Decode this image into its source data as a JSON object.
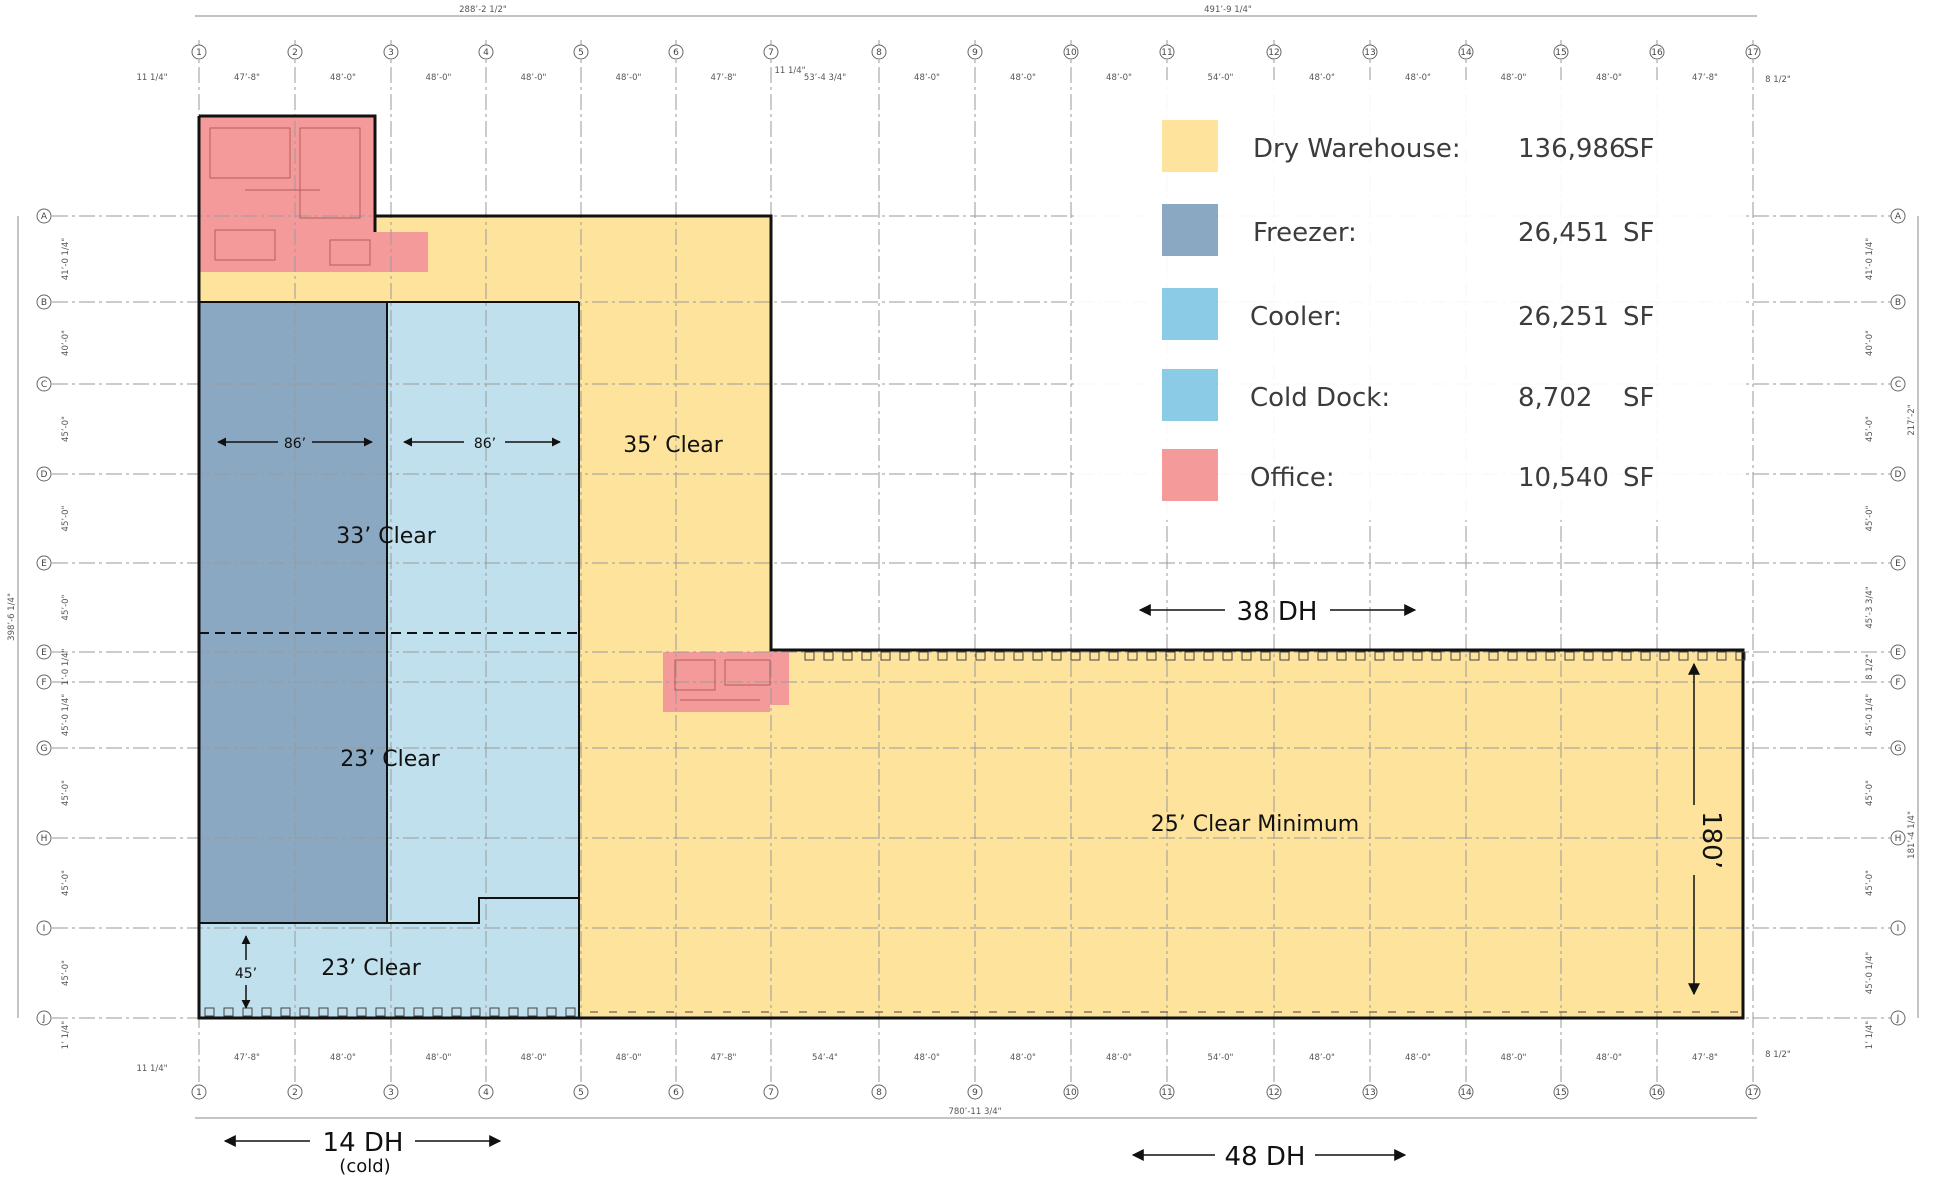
{
  "colors": {
    "dry_warehouse": "#fde39b",
    "freezer": "#8ba8c3",
    "cooler": "#bfe0ec",
    "cold_dock": "#bfe0ec",
    "office": "#f59a9a",
    "legend_cooler": "#8ccbe6",
    "legend_cold_dock": "#8ccbe6"
  },
  "legend": [
    {
      "key": "dry_warehouse",
      "label": "Dry Warehouse:",
      "value": "136,986",
      "unit": "SF"
    },
    {
      "key": "freezer",
      "label": "Freezer:",
      "value": "26,451",
      "unit": "SF"
    },
    {
      "key": "cooler",
      "label": "Cooler:",
      "value": "26,251",
      "unit": "SF"
    },
    {
      "key": "cold_dock",
      "label": "Cold Dock:",
      "value": "8,702",
      "unit": "SF"
    },
    {
      "key": "office",
      "label": "Office:",
      "value": "10,540",
      "unit": "SF"
    }
  ],
  "zone_labels": {
    "dry_clear": "35’ Clear",
    "upper_cold_clear": "33’ Clear",
    "lower_cold_clear": "23’ Clear",
    "dock_clear": "23’ Clear",
    "main_clear": "25’ Clear Minimum"
  },
  "dimensions": {
    "freezer_width": "86’",
    "cooler_width": "86’",
    "dock_depth": "45’",
    "wing_depth": "180’"
  },
  "door_labels": {
    "north": "38 DH",
    "south": "48 DH",
    "cold": "14 DH",
    "cold_note": "(cold)"
  },
  "top_overall_dims": [
    "288’-2 1/2\"",
    "491’-9 1/4\""
  ],
  "bottom_overall_dim": "780’-11 3/4\"",
  "left_overall_dim": "398’-6 1/4\"",
  "right_overall_dim": "217’-2\"",
  "right_lower_dim": "181’-4 1/4\"",
  "column_lines": [
    "1",
    "2",
    "3",
    "4",
    "5",
    "6",
    "7",
    "8",
    "9",
    "10",
    "11",
    "12",
    "13",
    "14",
    "15",
    "16",
    "17"
  ],
  "row_lines": [
    "A",
    "B",
    "C",
    "D",
    "E",
    "E",
    "F",
    "G",
    "H",
    "I",
    "J"
  ],
  "top_bay_dims": [
    "47’-8\"",
    "48’-0\"",
    "48’-0\"",
    "48’-0\"",
    "48’-0\"",
    "47’-8\"",
    "53’-4 3/4\"",
    "48’-0\"",
    "48’-0\"",
    "48’-0\"",
    "54’-0\"",
    "48’-0\"",
    "48’-0\"",
    "48’-0\"",
    "48’-0\"",
    "47’-8\""
  ],
  "bottom_bay_dims": [
    "47’-8\"",
    "48’-0\"",
    "48’-0\"",
    "48’-0\"",
    "48’-0\"",
    "47’-8\"",
    "54’-4\"",
    "48’-0\"",
    "48’-0\"",
    "48’-0\"",
    "54’-0\"",
    "48’-0\"",
    "48’-0\"",
    "48’-0\"",
    "48’-0\"",
    "47’-8\""
  ],
  "left_row_dims": [
    "41’-0 1/4\"",
    "40’-0\"",
    "45’-0\"",
    "45’-0\"",
    "45’-0\"",
    "1’-0 1/4\"",
    "45’-0 1/4\"",
    "45’-0\"",
    "45’-0\"",
    "45’-0\"",
    "45’-0 1/4\""
  ],
  "right_row_dims": [
    "41’-0 1/4\"",
    "40’-0\"",
    "45’-0\"",
    "45’-0\"",
    "45’-3 3/4\"",
    "8 1/2\"",
    "45’-0 1/4\"",
    "45’-0\"",
    "45’-0\"",
    "45’-0 1/4\""
  ],
  "edge_dims": {
    "top_left": "11 1/4\"",
    "top_mid": "11 1/4\"",
    "top_right": "8 1/2\"",
    "bottom_left": "11 1/4\"",
    "bottom_right": "8 1/2\"",
    "left_bottom": "1’ 1/4\"",
    "right_bottom": "1’ 1/4\""
  }
}
